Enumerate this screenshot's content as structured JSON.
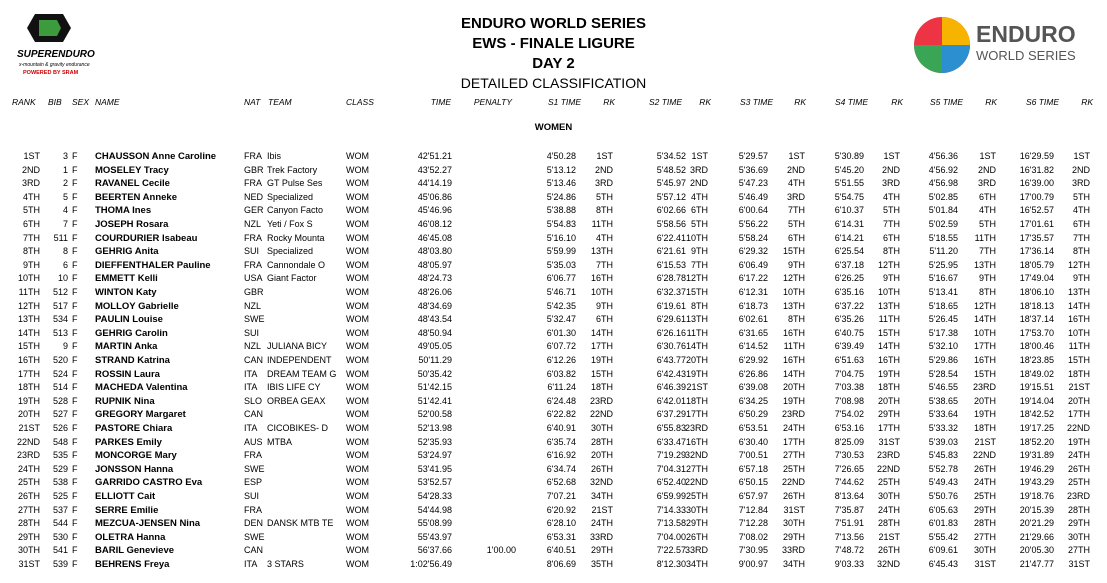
{
  "header": {
    "left_logo": {
      "name": "SUPERENDURO",
      "tagline": "x-mountain & gravity endurance",
      "powered": "POWERED BY SRAM"
    },
    "title": "ENDURO WORLD SERIES",
    "subtitle": "EWS - FINALE LIGURE",
    "day": "DAY 2",
    "section": "DETAILED CLASSIFICATION",
    "right_logo": {
      "line1": "ENDURO",
      "line2": "WORLD SERIES"
    }
  },
  "table": {
    "columns": [
      "RANK",
      "BIB",
      "SEX",
      "NAME",
      "NAT",
      "TEAM",
      "CLASS",
      "TIME",
      "PENALTY",
      "S1  TIME",
      "RK",
      "S2  TIME",
      "RK",
      "S3  TIME",
      "RK",
      "S4  TIME",
      "RK",
      "S5  TIME",
      "RK",
      "S6  TIME",
      "RK"
    ],
    "group": "WOMEN",
    "rows": [
      [
        "1ST",
        "3",
        "F",
        "CHAUSSON Anne Caroline",
        "FRA",
        "Ibis",
        "WOM",
        "42'51.21",
        null,
        "4'50.28",
        "1ST",
        "5'34.52",
        "1ST",
        "5'29.57",
        "1ST",
        "5'30.89",
        "1ST",
        "4'56.36",
        "1ST",
        "16'29.59",
        "1ST"
      ],
      [
        "2ND",
        "1",
        "F",
        "MOSELEY Tracy",
        "GBR",
        "Trek Factory",
        "WOM",
        "43'52.27",
        null,
        "5'13.12",
        "2ND",
        "5'48.52",
        "3RD",
        "5'36.69",
        "2ND",
        "5'45.20",
        "2ND",
        "4'56.92",
        "2ND",
        "16'31.82",
        "2ND"
      ],
      [
        "3RD",
        "2",
        "F",
        "RAVANEL Cecile",
        "FRA",
        "GT Pulse Ses",
        "WOM",
        "44'14.19",
        null,
        "5'13.46",
        "3RD",
        "5'45.97",
        "2ND",
        "5'47.23",
        "4TH",
        "5'51.55",
        "3RD",
        "4'56.98",
        "3RD",
        "16'39.00",
        "3RD"
      ],
      [
        "4TH",
        "5",
        "F",
        "BEERTEN Anneke",
        "NED",
        "Specialized",
        "WOM",
        "45'06.86",
        null,
        "5'24.86",
        "5TH",
        "5'57.12",
        "4TH",
        "5'46.49",
        "3RD",
        "5'54.75",
        "4TH",
        "5'02.85",
        "6TH",
        "17'00.79",
        "5TH"
      ],
      [
        "5TH",
        "4",
        "F",
        "THOMA Ines",
        "GER",
        "Canyon Facto",
        "WOM",
        "45'46.96",
        null,
        "5'38.88",
        "8TH",
        "6'02.66",
        "6TH",
        "6'00.64",
        "7TH",
        "6'10.37",
        "5TH",
        "5'01.84",
        "4TH",
        "16'52.57",
        "4TH"
      ],
      [
        "6TH",
        "7",
        "F",
        "JOSEPH Rosara",
        "NZL",
        "Yeti / Fox S",
        "WOM",
        "46'08.12",
        null,
        "5'54.83",
        "11TH",
        "5'58.56",
        "5TH",
        "5'56.22",
        "5TH",
        "6'14.31",
        "7TH",
        "5'02.59",
        "5TH",
        "17'01.61",
        "6TH"
      ],
      [
        "7TH",
        "511",
        "F",
        "COURDURIER Isabeau",
        "FRA",
        "Rocky Mounta",
        "WOM",
        "46'45.08",
        null,
        "5'16.10",
        "4TH",
        "6'22.41",
        "10TH",
        "5'58.24",
        "6TH",
        "6'14.21",
        "6TH",
        "5'18.55",
        "11TH",
        "17'35.57",
        "7TH"
      ],
      [
        "8TH",
        "8",
        "F",
        "GEHRIG Anita",
        "SUI",
        "Specialized",
        "WOM",
        "48'03.80",
        null,
        "5'59.99",
        "13TH",
        "6'21.61",
        "9TH",
        "6'29.32",
        "15TH",
        "6'25.54",
        "8TH",
        "5'11.20",
        "7TH",
        "17'36.14",
        "8TH"
      ],
      [
        "9TH",
        "6",
        "F",
        "DIEFFENTHALER Pauline",
        "FRA",
        "Cannondale O",
        "WOM",
        "48'05.97",
        null,
        "5'35.03",
        "7TH",
        "6'15.53",
        "7TH",
        "6'06.49",
        "9TH",
        "6'37.18",
        "12TH",
        "5'25.95",
        "13TH",
        "18'05.79",
        "12TH"
      ],
      [
        "10TH",
        "10",
        "F",
        "EMMETT Kelli",
        "USA",
        "Giant Factor",
        "WOM",
        "48'24.73",
        null,
        "6'06.77",
        "16TH",
        "6'28.78",
        "12TH",
        "6'17.22",
        "12TH",
        "6'26.25",
        "9TH",
        "5'16.67",
        "9TH",
        "17'49.04",
        "9TH"
      ],
      [
        "11TH",
        "512",
        "F",
        "WINTON Katy",
        "GBR",
        null,
        "WOM",
        "48'26.06",
        null,
        "5'46.71",
        "10TH",
        "6'32.37",
        "15TH",
        "6'12.31",
        "10TH",
        "6'35.16",
        "10TH",
        "5'13.41",
        "8TH",
        "18'06.10",
        "13TH"
      ],
      [
        "12TH",
        "517",
        "F",
        "MOLLOY Gabrielle",
        "NZL",
        null,
        "WOM",
        "48'34.69",
        null,
        "5'42.35",
        "9TH",
        "6'19.61",
        "8TH",
        "6'18.73",
        "13TH",
        "6'37.22",
        "13TH",
        "5'18.65",
        "12TH",
        "18'18.13",
        "14TH"
      ],
      [
        "13TH",
        "534",
        "F",
        "PAULIN Louise",
        "SWE",
        null,
        "WOM",
        "48'43.54",
        null,
        "5'32.47",
        "6TH",
        "6'29.61",
        "13TH",
        "6'02.61",
        "8TH",
        "6'35.26",
        "11TH",
        "5'26.45",
        "14TH",
        "18'37.14",
        "16TH"
      ],
      [
        "14TH",
        "513",
        "F",
        "GEHRIG Carolin",
        "SUI",
        null,
        "WOM",
        "48'50.94",
        null,
        "6'01.30",
        "14TH",
        "6'26.16",
        "11TH",
        "6'31.65",
        "16TH",
        "6'40.75",
        "15TH",
        "5'17.38",
        "10TH",
        "17'53.70",
        "10TH"
      ],
      [
        "15TH",
        "9",
        "F",
        "MARTIN Anka",
        "NZL",
        "JULIANA BICY",
        "WOM",
        "49'05.05",
        null,
        "6'07.72",
        "17TH",
        "6'30.76",
        "14TH",
        "6'14.52",
        "11TH",
        "6'39.49",
        "14TH",
        "5'32.10",
        "17TH",
        "18'00.46",
        "11TH"
      ],
      [
        "16TH",
        "520",
        "F",
        "STRAND Katrina",
        "CAN",
        "INDEPENDENT",
        "WOM",
        "50'11.29",
        null,
        "6'12.26",
        "19TH",
        "6'43.77",
        "20TH",
        "6'29.92",
        "16TH",
        "6'51.63",
        "16TH",
        "5'29.86",
        "16TH",
        "18'23.85",
        "15TH"
      ],
      [
        "17TH",
        "524",
        "F",
        "ROSSIN Laura",
        "ITA",
        "DREAM TEAM G",
        "WOM",
        "50'35.42",
        null,
        "6'03.82",
        "15TH",
        "6'42.43",
        "19TH",
        "6'26.86",
        "14TH",
        "7'04.75",
        "19TH",
        "5'28.54",
        "15TH",
        "18'49.02",
        "18TH"
      ],
      [
        "18TH",
        "514",
        "F",
        "MACHEDA Valentina",
        "ITA",
        "IBIS LIFE CY",
        "WOM",
        "51'42.15",
        null,
        "6'11.24",
        "18TH",
        "6'46.39",
        "21ST",
        "6'39.08",
        "20TH",
        "7'03.38",
        "18TH",
        "5'46.55",
        "23RD",
        "19'15.51",
        "21ST"
      ],
      [
        "19TH",
        "528",
        "F",
        "RUPNIK Nina",
        "SLO",
        "ORBEA GEAX",
        "WOM",
        "51'42.41",
        null,
        "6'24.48",
        "23RD",
        "6'42.01",
        "18TH",
        "6'34.25",
        "19TH",
        "7'08.98",
        "20TH",
        "5'38.65",
        "20TH",
        "19'14.04",
        "20TH"
      ],
      [
        "20TH",
        "527",
        "F",
        "GREGORY Margaret",
        "CAN",
        null,
        "WOM",
        "52'00.58",
        null,
        "6'22.82",
        "22ND",
        "6'37.29",
        "17TH",
        "6'50.29",
        "23RD",
        "7'54.02",
        "29TH",
        "5'33.64",
        "19TH",
        "18'42.52",
        "17TH"
      ],
      [
        "21ST",
        "526",
        "F",
        "PASTORE Chiara",
        "ITA",
        "CICOBIKES- D",
        "WOM",
        "52'13.98",
        null,
        "6'40.91",
        "30TH",
        "6'55.83",
        "23RD",
        "6'53.51",
        "24TH",
        "6'53.16",
        "17TH",
        "5'33.32",
        "18TH",
        "19'17.25",
        "22ND"
      ],
      [
        "22ND",
        "548",
        "F",
        "PARKES Emily",
        "AUS",
        "MTBA",
        "WOM",
        "52'35.93",
        null,
        "6'35.74",
        "28TH",
        "6'33.47",
        "16TH",
        "6'30.40",
        "17TH",
        "8'25.09",
        "31ST",
        "5'39.03",
        "21ST",
        "18'52.20",
        "19TH"
      ],
      [
        "23RD",
        "535",
        "F",
        "MONCORGE Mary",
        "FRA",
        null,
        "WOM",
        "53'24.97",
        null,
        "6'16.92",
        "20TH",
        "7'19.29",
        "32ND",
        "7'00.51",
        "27TH",
        "7'30.53",
        "23RD",
        "5'45.83",
        "22ND",
        "19'31.89",
        "24TH"
      ],
      [
        "24TH",
        "529",
        "F",
        "JONSSON Hanna",
        "SWE",
        null,
        "WOM",
        "53'41.95",
        null,
        "6'34.74",
        "26TH",
        "7'04.31",
        "27TH",
        "6'57.18",
        "25TH",
        "7'26.65",
        "22ND",
        "5'52.78",
        "26TH",
        "19'46.29",
        "26TH"
      ],
      [
        "25TH",
        "538",
        "F",
        "GARRIDO CASTRO Eva",
        "ESP",
        null,
        "WOM",
        "53'52.57",
        null,
        "6'52.68",
        "32ND",
        "6'52.40",
        "22ND",
        "6'50.15",
        "22ND",
        "7'44.62",
        "25TH",
        "5'49.43",
        "24TH",
        "19'43.29",
        "25TH"
      ],
      [
        "26TH",
        "525",
        "F",
        "ELLIOTT Cait",
        "SUI",
        null,
        "WOM",
        "54'28.33",
        null,
        "7'07.21",
        "34TH",
        "6'59.99",
        "25TH",
        "6'57.97",
        "26TH",
        "8'13.64",
        "30TH",
        "5'50.76",
        "25TH",
        "19'18.76",
        "23RD"
      ],
      [
        "27TH",
        "537",
        "F",
        "SERRE Emilie",
        "FRA",
        null,
        "WOM",
        "54'44.98",
        null,
        "6'20.92",
        "21ST",
        "7'14.33",
        "30TH",
        "7'12.84",
        "31ST",
        "7'35.87",
        "24TH",
        "6'05.63",
        "29TH",
        "20'15.39",
        "28TH"
      ],
      [
        "28TH",
        "544",
        "F",
        "MEZCUA-JENSEN Nina",
        "DEN",
        "DANSK MTB TE",
        "WOM",
        "55'08.99",
        null,
        "6'28.10",
        "24TH",
        "7'13.58",
        "29TH",
        "7'12.28",
        "30TH",
        "7'51.91",
        "28TH",
        "6'01.83",
        "28TH",
        "20'21.29",
        "29TH"
      ],
      [
        "29TH",
        "530",
        "F",
        "OLETRA Hanna",
        "SWE",
        null,
        "WOM",
        "55'43.97",
        null,
        "6'53.31",
        "33RD",
        "7'04.00",
        "26TH",
        "7'08.02",
        "29TH",
        "7'13.56",
        "21ST",
        "5'55.42",
        "27TH",
        "21'29.66",
        "30TH"
      ],
      [
        "30TH",
        "541",
        "F",
        "BARIL Genevieve",
        "CAN",
        null,
        "WOM",
        "56'37.66",
        "1'00.00",
        "6'40.51",
        "29TH",
        "7'22.57",
        "33RD",
        "7'30.95",
        "33RD",
        "7'48.72",
        "26TH",
        "6'09.61",
        "30TH",
        "20'05.30",
        "27TH"
      ],
      [
        "31ST",
        "539",
        "F",
        "BEHRENS Freya",
        "ITA",
        "3 STARS",
        "WOM",
        "1:02'56.49",
        null,
        "8'06.69",
        "35TH",
        "8'12.30",
        "34TH",
        "9'00.97",
        "34TH",
        "9'03.33",
        "32ND",
        "6'45.43",
        "31ST",
        "21'47.77",
        "31ST"
      ]
    ]
  }
}
